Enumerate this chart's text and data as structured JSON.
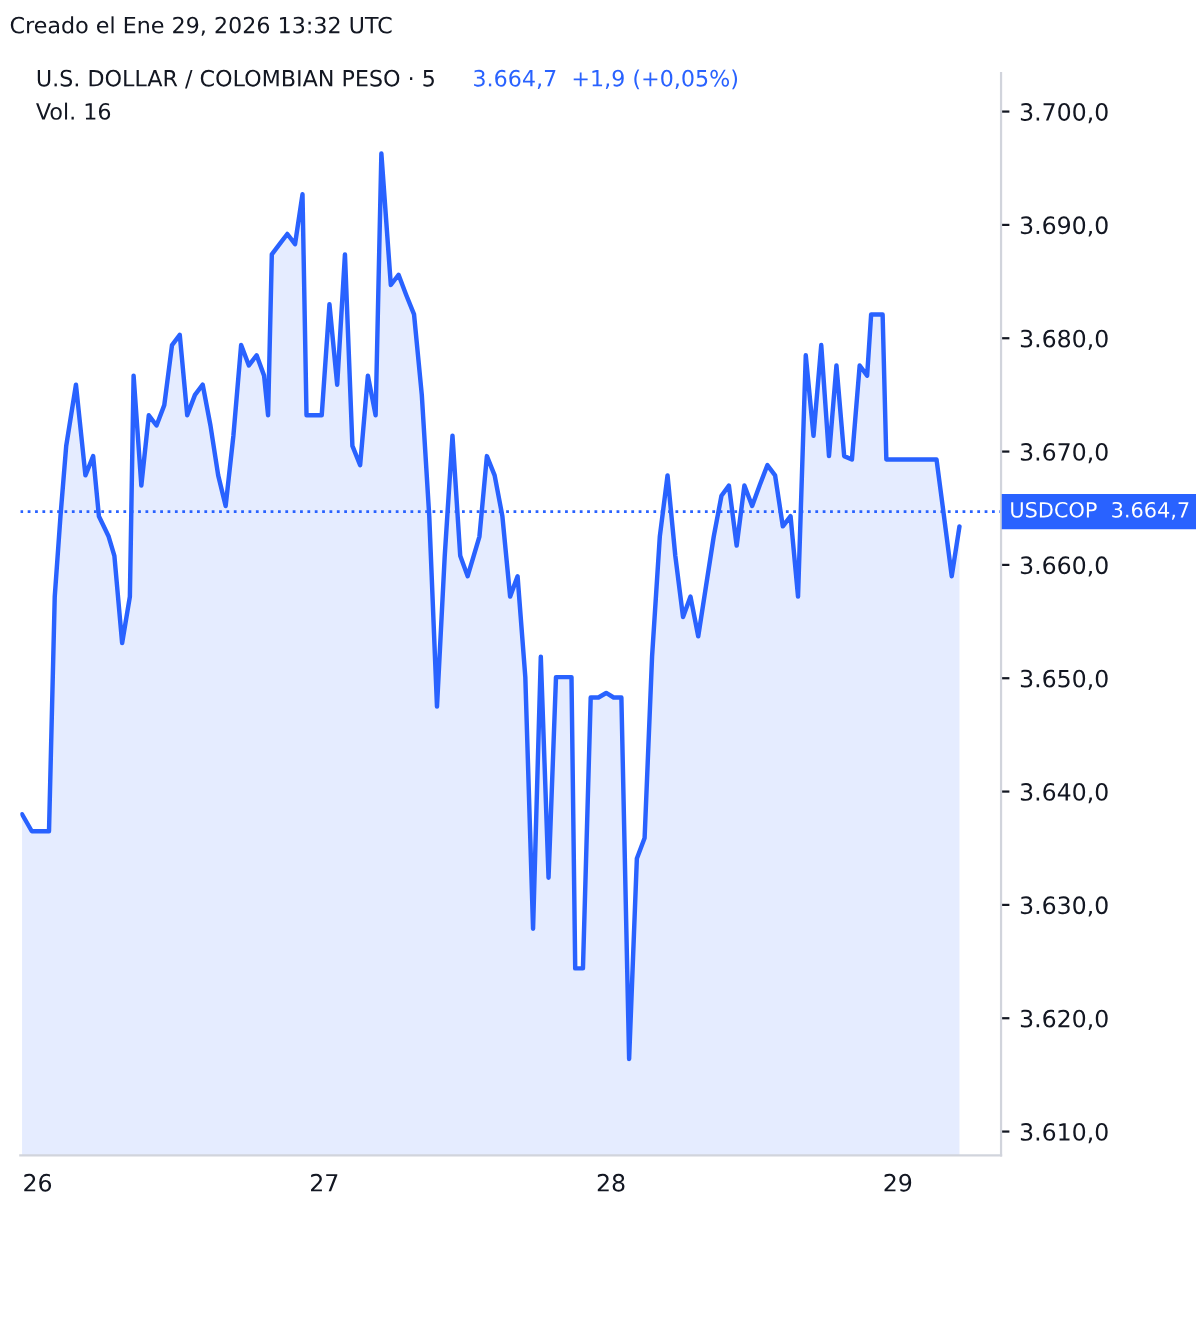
{
  "chart_data": {
    "type": "area",
    "title": "U.S. DOLLAR / COLOMBIAN PESO · 5",
    "subtitle": "3.664,7  +1,9 (+0,05%)",
    "annotations": [
      "Creado el Ene 29, 2026 13:32 UTC",
      "Vol. 16"
    ],
    "x": [
      25.946,
      25.98,
      26.04,
      26.06,
      26.08,
      26.1,
      26.134,
      26.167,
      26.194,
      26.214,
      26.248,
      26.268,
      26.295,
      26.322,
      26.335,
      26.362,
      26.388,
      26.415,
      26.442,
      26.469,
      26.496,
      26.522,
      26.549,
      26.576,
      26.603,
      26.63,
      26.656,
      26.683,
      26.71,
      26.737,
      26.764,
      26.79,
      26.804,
      26.817,
      26.844,
      26.871,
      26.898,
      26.924,
      26.938,
      26.991,
      27.018,
      27.045,
      27.072,
      27.098,
      27.125,
      27.152,
      27.179,
      27.199,
      27.232,
      27.259,
      27.286,
      27.313,
      27.34,
      27.366,
      27.393,
      27.42,
      27.447,
      27.474,
      27.5,
      27.541,
      27.567,
      27.594,
      27.621,
      27.648,
      27.674,
      27.701,
      27.728,
      27.755,
      27.782,
      27.808,
      27.835,
      27.862,
      27.875,
      27.902,
      27.929,
      27.956,
      27.983,
      28.009,
      28.036,
      28.063,
      28.09,
      28.117,
      28.143,
      28.17,
      28.197,
      28.224,
      28.251,
      28.277,
      28.304,
      28.331,
      28.358,
      28.385,
      28.411,
      28.438,
      28.465,
      28.492,
      28.518,
      28.545,
      28.572,
      28.599,
      28.626,
      28.652,
      28.679,
      28.706,
      28.733,
      28.76,
      28.786,
      28.813,
      28.84,
      28.867,
      28.893,
      28.907,
      28.947,
      28.96,
      29.135,
      29.161,
      29.188,
      29.215
    ],
    "series": [
      {
        "color": "#2962ff",
        "values": [
          3638.0,
          3636.5,
          3636.5,
          3657.2,
          3664.3,
          3670.5,
          3675.9,
          3667.9,
          3669.6,
          3664.3,
          3662.5,
          3660.8,
          3653.1,
          3657.2,
          3676.7,
          3667.0,
          3673.2,
          3672.3,
          3674.1,
          3679.4,
          3680.3,
          3673.2,
          3675.0,
          3675.9,
          3672.3,
          3667.9,
          3665.2,
          3671.4,
          3679.4,
          3677.6,
          3678.5,
          3676.7,
          3673.2,
          3687.4,
          3688.3,
          3689.2,
          3688.3,
          3692.7,
          3673.2,
          3673.2,
          3683.0,
          3675.9,
          3687.4,
          3670.5,
          3668.8,
          3676.7,
          3673.2,
          3696.3,
          3684.7,
          3685.6,
          3683.8,
          3682.1,
          3675.0,
          3664.3,
          3647.5,
          3660.8,
          3671.4,
          3660.8,
          3659.0,
          3662.5,
          3669.6,
          3667.9,
          3664.3,
          3657.2,
          3659.0,
          3650.1,
          3627.9,
          3651.9,
          3632.4,
          3650.1,
          3650.1,
          3650.1,
          3624.4,
          3624.4,
          3648.3,
          3648.3,
          3648.7,
          3648.3,
          3648.3,
          3616.4,
          3634.1,
          3635.9,
          3651.9,
          3662.5,
          3667.9,
          3660.8,
          3655.4,
          3657.2,
          3653.7,
          3658.1,
          3662.5,
          3666.1,
          3667.0,
          3661.7,
          3667.0,
          3665.2,
          3667.0,
          3668.8,
          3667.9,
          3663.4,
          3664.3,
          3657.2,
          3678.5,
          3671.4,
          3679.4,
          3669.6,
          3677.6,
          3669.6,
          3669.3,
          3677.6,
          3676.7,
          3682.1,
          3682.1,
          3669.3,
          3669.3,
          3664.3,
          3659.0,
          3663.4
        ]
      }
    ],
    "xlim": [
      25.94,
      29.36
    ],
    "xticks": [
      {
        "value": 26,
        "label": "26"
      },
      {
        "value": 27,
        "label": "27"
      },
      {
        "value": 28,
        "label": "28"
      },
      {
        "value": 29,
        "label": "29"
      }
    ],
    "ylim": [
      3607.9,
      3703.4
    ],
    "yticks": [
      {
        "value": 3610,
        "label": "3.610,0"
      },
      {
        "value": 3620,
        "label": "3.620,0"
      },
      {
        "value": 3630,
        "label": "3.630,0"
      },
      {
        "value": 3640,
        "label": "3.640,0"
      },
      {
        "value": 3650,
        "label": "3.650,0"
      },
      {
        "value": 3660,
        "label": "3.660,0"
      },
      {
        "value": 3670,
        "label": "3.670,0"
      },
      {
        "value": 3680,
        "label": "3.680,0"
      },
      {
        "value": 3690,
        "label": "3.690,0"
      },
      {
        "value": 3700,
        "label": "3.700,0"
      }
    ],
    "ref_lines": [
      {
        "axis": "y",
        "value": 3664.7,
        "label": "USDCOP  3.664,7",
        "color": "#2962ff",
        "line_style": "dotted"
      }
    ],
    "grid": false,
    "legend": false
  }
}
